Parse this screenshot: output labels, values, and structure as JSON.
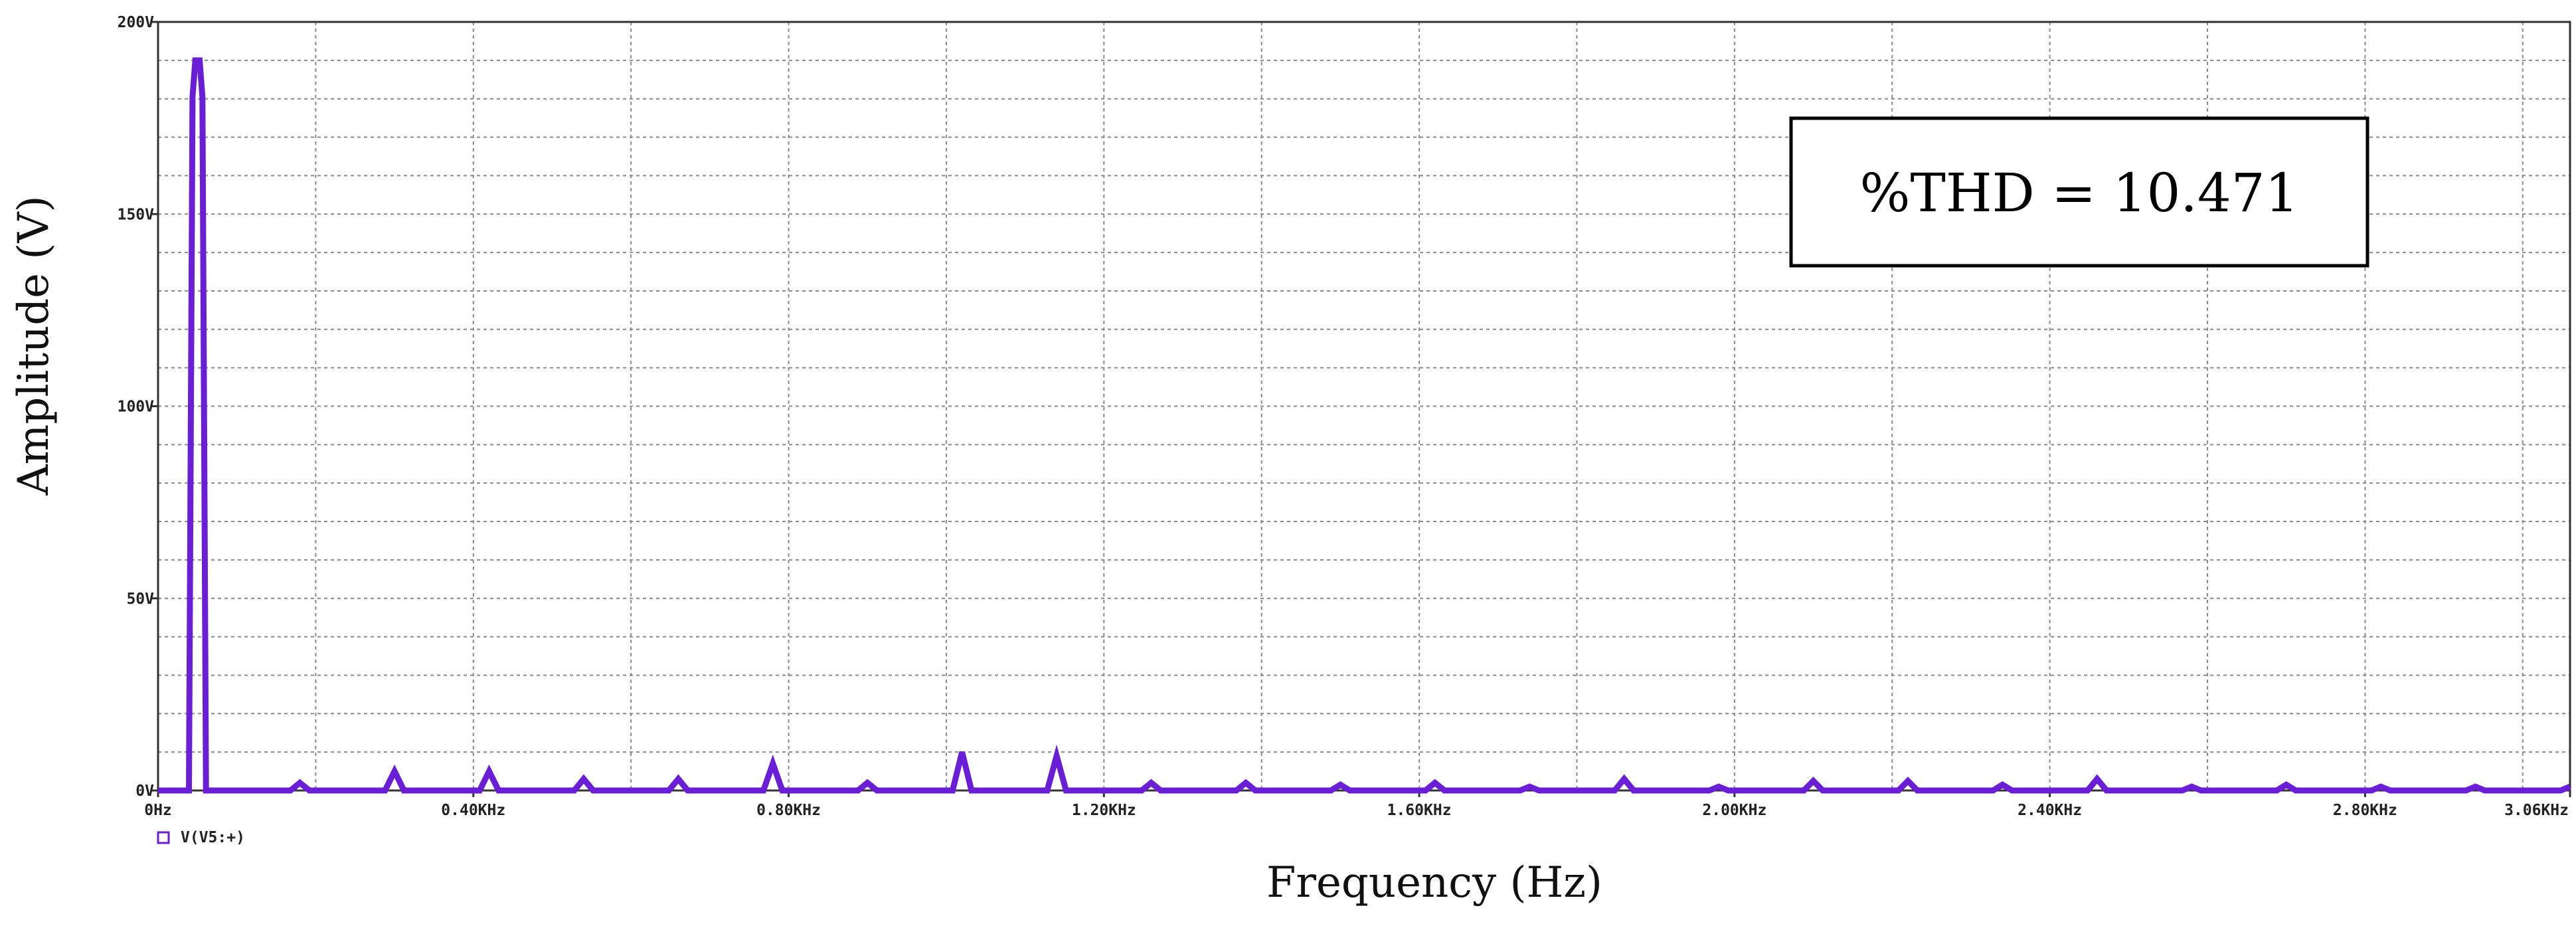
{
  "chart_data": {
    "type": "line",
    "xlabel": "Frequency (Hz)",
    "ylabel": "Amplitude (V)",
    "xlim": [
      0,
      3.06
    ],
    "ylim": [
      0,
      200
    ],
    "x_unit": "KHz",
    "y_unit": "V",
    "grid": true,
    "x_tick_labels": [
      {
        "value": 0,
        "label": "0Hz"
      },
      {
        "value": 0.4,
        "label": "0.40KHz"
      },
      {
        "value": 0.8,
        "label": "0.80KHz"
      },
      {
        "value": 1.2,
        "label": "1.20KHz"
      },
      {
        "value": 1.6,
        "label": "1.60KHz"
      },
      {
        "value": 2.0,
        "label": "2.00KHz"
      },
      {
        "value": 2.4,
        "label": "2.40KHz"
      },
      {
        "value": 2.8,
        "label": "2.80KHz"
      },
      {
        "value": 3.06,
        "label": "3.06KHz"
      }
    ],
    "y_tick_labels": [
      {
        "value": 0,
        "label": "0V"
      },
      {
        "value": 50,
        "label": "50V"
      },
      {
        "value": 100,
        "label": "100V"
      },
      {
        "value": 150,
        "label": "150V"
      },
      {
        "value": 200,
        "label": "200V"
      }
    ],
    "legend": {
      "label": "V(V5:+)",
      "placement": "bottom-left"
    },
    "series": [
      {
        "name": "V(V5:+)",
        "color": "#6a1fd6",
        "peaks": [
          {
            "x": 0.05,
            "y": 190
          },
          {
            "x": 0.18,
            "y": 2
          },
          {
            "x": 0.3,
            "y": 5
          },
          {
            "x": 0.42,
            "y": 5
          },
          {
            "x": 0.54,
            "y": 3
          },
          {
            "x": 0.66,
            "y": 3
          },
          {
            "x": 0.78,
            "y": 7
          },
          {
            "x": 0.9,
            "y": 2
          },
          {
            "x": 1.02,
            "y": 10
          },
          {
            "x": 1.14,
            "y": 9
          },
          {
            "x": 1.26,
            "y": 2
          },
          {
            "x": 1.38,
            "y": 2
          },
          {
            "x": 1.5,
            "y": 1.5
          },
          {
            "x": 1.62,
            "y": 2
          },
          {
            "x": 1.74,
            "y": 1
          },
          {
            "x": 1.86,
            "y": 3
          },
          {
            "x": 1.98,
            "y": 1
          },
          {
            "x": 2.1,
            "y": 2.5
          },
          {
            "x": 2.22,
            "y": 2.5
          },
          {
            "x": 2.34,
            "y": 1.5
          },
          {
            "x": 2.46,
            "y": 3
          },
          {
            "x": 2.58,
            "y": 1
          },
          {
            "x": 2.7,
            "y": 1.5
          },
          {
            "x": 2.82,
            "y": 1
          },
          {
            "x": 2.94,
            "y": 1
          },
          {
            "x": 3.06,
            "y": 1
          }
        ]
      }
    ],
    "annotations": [
      {
        "text": "%THD = 10.471"
      }
    ]
  }
}
